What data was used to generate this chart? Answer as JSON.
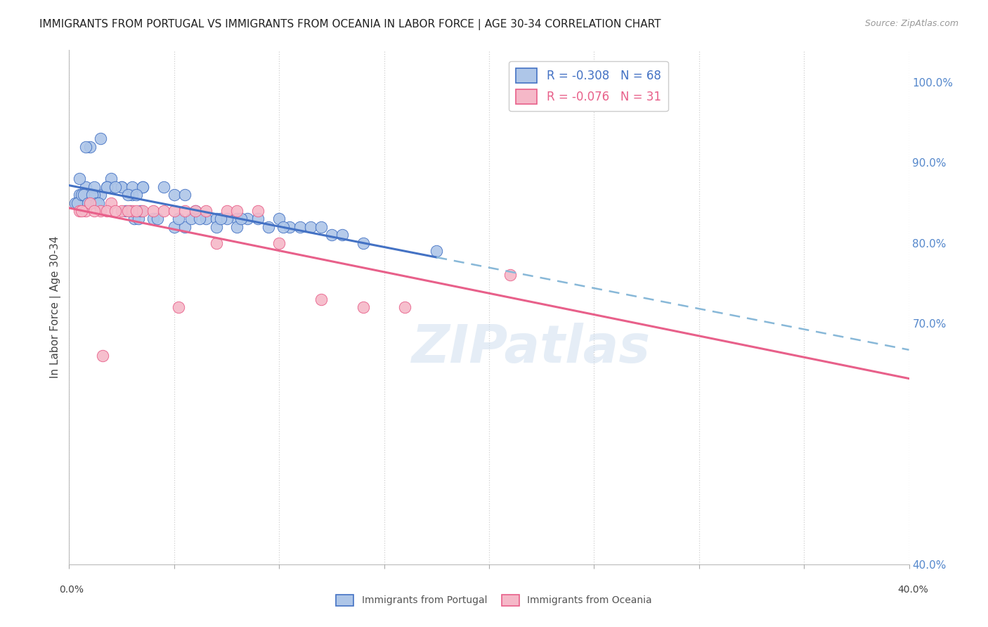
{
  "title": "IMMIGRANTS FROM PORTUGAL VS IMMIGRANTS FROM OCEANIA IN LABOR FORCE | AGE 30-34 CORRELATION CHART",
  "source": "Source: ZipAtlas.com",
  "ylabel": "In Labor Force | Age 30-34",
  "right_ytick_vals": [
    100.0,
    90.0,
    80.0,
    70.0,
    40.0
  ],
  "right_ytick_labels": [
    "100.0%",
    "90.0%",
    "80.0%",
    "70.0%",
    "40.0%"
  ],
  "xlim": [
    0.0,
    40.0
  ],
  "ylim": [
    40.0,
    104.0
  ],
  "portugal_R": -0.308,
  "portugal_N": 68,
  "oceania_R": -0.076,
  "oceania_N": 31,
  "portugal_color": "#aec6e8",
  "oceania_color": "#f5b8c8",
  "portugal_line_color": "#4472c4",
  "oceania_line_color": "#e8608a",
  "dashed_line_color": "#88b8d8",
  "background_color": "#ffffff",
  "grid_color": "#d0d0d0",
  "watermark": "ZIPatlas",
  "port_x": [
    1.0,
    1.0,
    0.5,
    0.8,
    1.5,
    1.5,
    1.2,
    0.8,
    1.2,
    0.5,
    2.0,
    2.5,
    2.0,
    1.8,
    2.5,
    1.8,
    2.2,
    3.0,
    3.5,
    3.0,
    3.5,
    4.5,
    2.8,
    3.2,
    5.0,
    5.5,
    5.0,
    4.0,
    5.5,
    6.5,
    7.0,
    6.0,
    7.0,
    8.0,
    8.5,
    7.5,
    8.0,
    9.0,
    9.5,
    10.0,
    10.5,
    11.0,
    11.5,
    12.0,
    12.5,
    13.0,
    14.0,
    17.5,
    0.3,
    0.4,
    0.6,
    0.7,
    0.9,
    1.1,
    1.3,
    1.4,
    2.7,
    2.9,
    3.1,
    3.3,
    3.4,
    4.2,
    5.2,
    5.8,
    6.2,
    7.2,
    8.2,
    10.2
  ],
  "port_y": [
    85,
    92,
    86,
    92,
    86,
    93,
    86,
    87,
    87,
    88,
    87,
    87,
    88,
    87,
    87,
    87,
    87,
    86,
    87,
    87,
    87,
    87,
    86,
    86,
    86,
    86,
    82,
    83,
    82,
    83,
    83,
    84,
    82,
    83,
    83,
    83,
    82,
    83,
    82,
    83,
    82,
    82,
    82,
    82,
    81,
    81,
    80,
    79,
    85,
    85,
    86,
    86,
    85,
    86,
    85,
    85,
    84,
    84,
    83,
    83,
    84,
    83,
    83,
    83,
    83,
    83,
    83,
    82
  ],
  "oce_x": [
    0.5,
    0.8,
    1.0,
    1.5,
    2.0,
    2.5,
    3.0,
    3.5,
    4.0,
    4.5,
    5.0,
    5.5,
    6.0,
    6.5,
    7.0,
    7.5,
    8.0,
    9.0,
    10.0,
    12.0,
    14.0,
    0.6,
    1.2,
    1.6,
    1.8,
    2.2,
    2.8,
    3.2,
    5.2,
    21.0,
    16.0
  ],
  "oce_y": [
    84,
    84,
    85,
    84,
    85,
    84,
    84,
    84,
    84,
    84,
    84,
    84,
    84,
    84,
    80,
    84,
    84,
    84,
    80,
    73,
    72,
    84,
    84,
    66,
    84,
    84,
    84,
    84,
    72,
    76,
    72
  ]
}
